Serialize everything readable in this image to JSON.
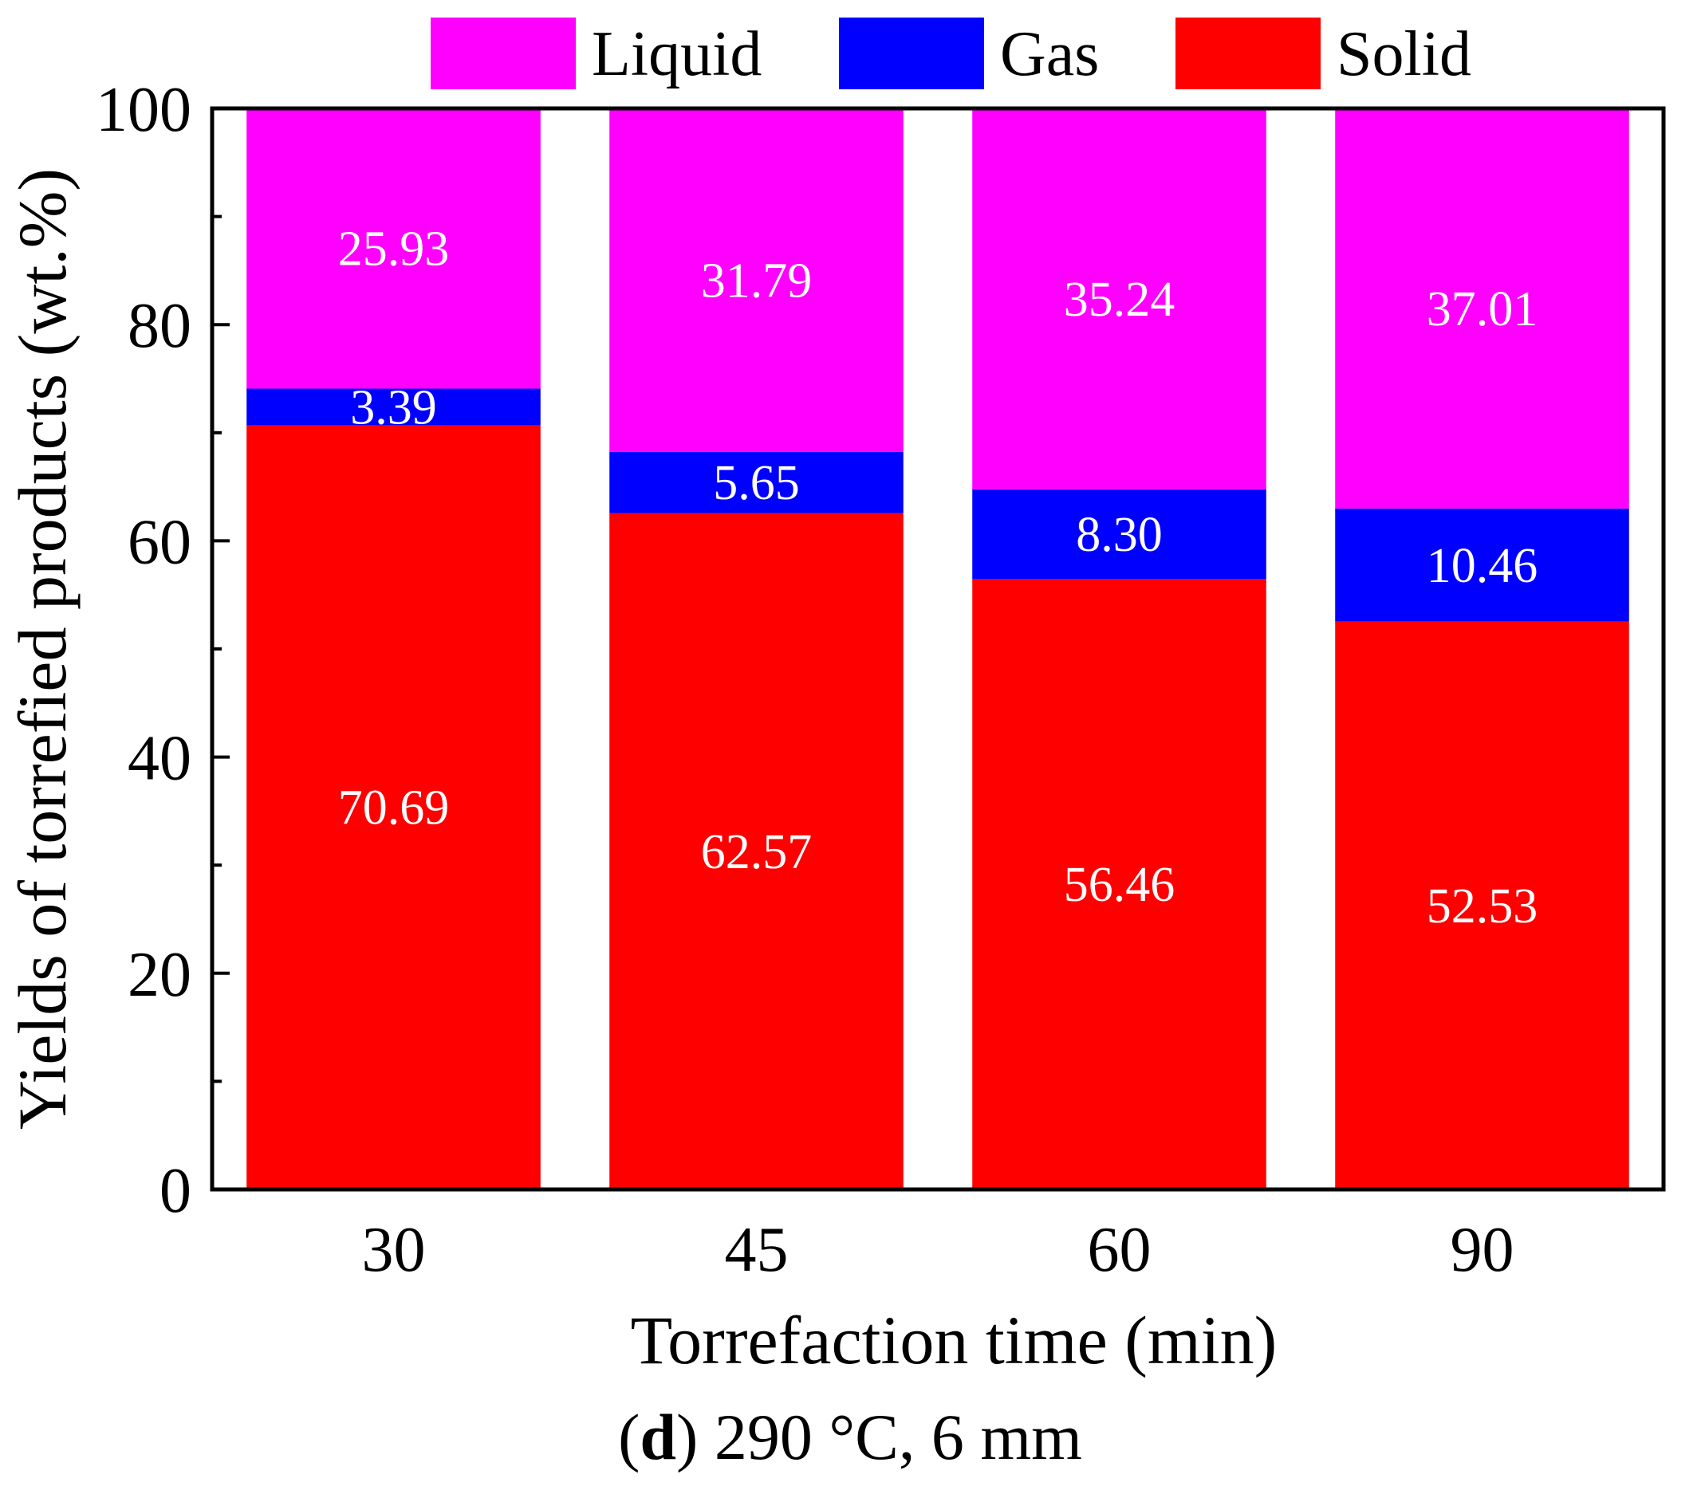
{
  "chart_data": {
    "type": "bar",
    "stacked": true,
    "categories": [
      "30",
      "45",
      "60",
      "90"
    ],
    "series": [
      {
        "name": "Solid",
        "color": "#ff0000",
        "values": [
          70.69,
          62.57,
          56.46,
          52.53
        ],
        "labels": [
          "70.69",
          "62.57",
          "56.46",
          "52.53"
        ]
      },
      {
        "name": "Gas",
        "color": "#0000ff",
        "values": [
          3.39,
          5.65,
          8.3,
          10.46
        ],
        "labels": [
          "3.39",
          "5.65",
          "8.30",
          "10.46"
        ]
      },
      {
        "name": "Liquid",
        "color": "#ff00ff",
        "values": [
          25.93,
          31.79,
          35.24,
          37.01
        ],
        "labels": [
          "25.93",
          "31.79",
          "35.24",
          "37.01"
        ]
      }
    ],
    "legend_order": [
      "Liquid",
      "Gas",
      "Solid"
    ],
    "legend_position": "top",
    "xlabel": "Torrefaction time (min)",
    "ylabel": "Yields of torrefied products (wt.%)",
    "ylim": [
      0,
      100
    ],
    "yticks": [
      0,
      20,
      40,
      60,
      80,
      100
    ],
    "yticks_labels": [
      "0",
      "20",
      "40",
      "60",
      "80",
      "100"
    ],
    "grid": false
  },
  "caption": {
    "bold": "d",
    "text": ") 290 °C, 6 mm",
    "open": "("
  }
}
